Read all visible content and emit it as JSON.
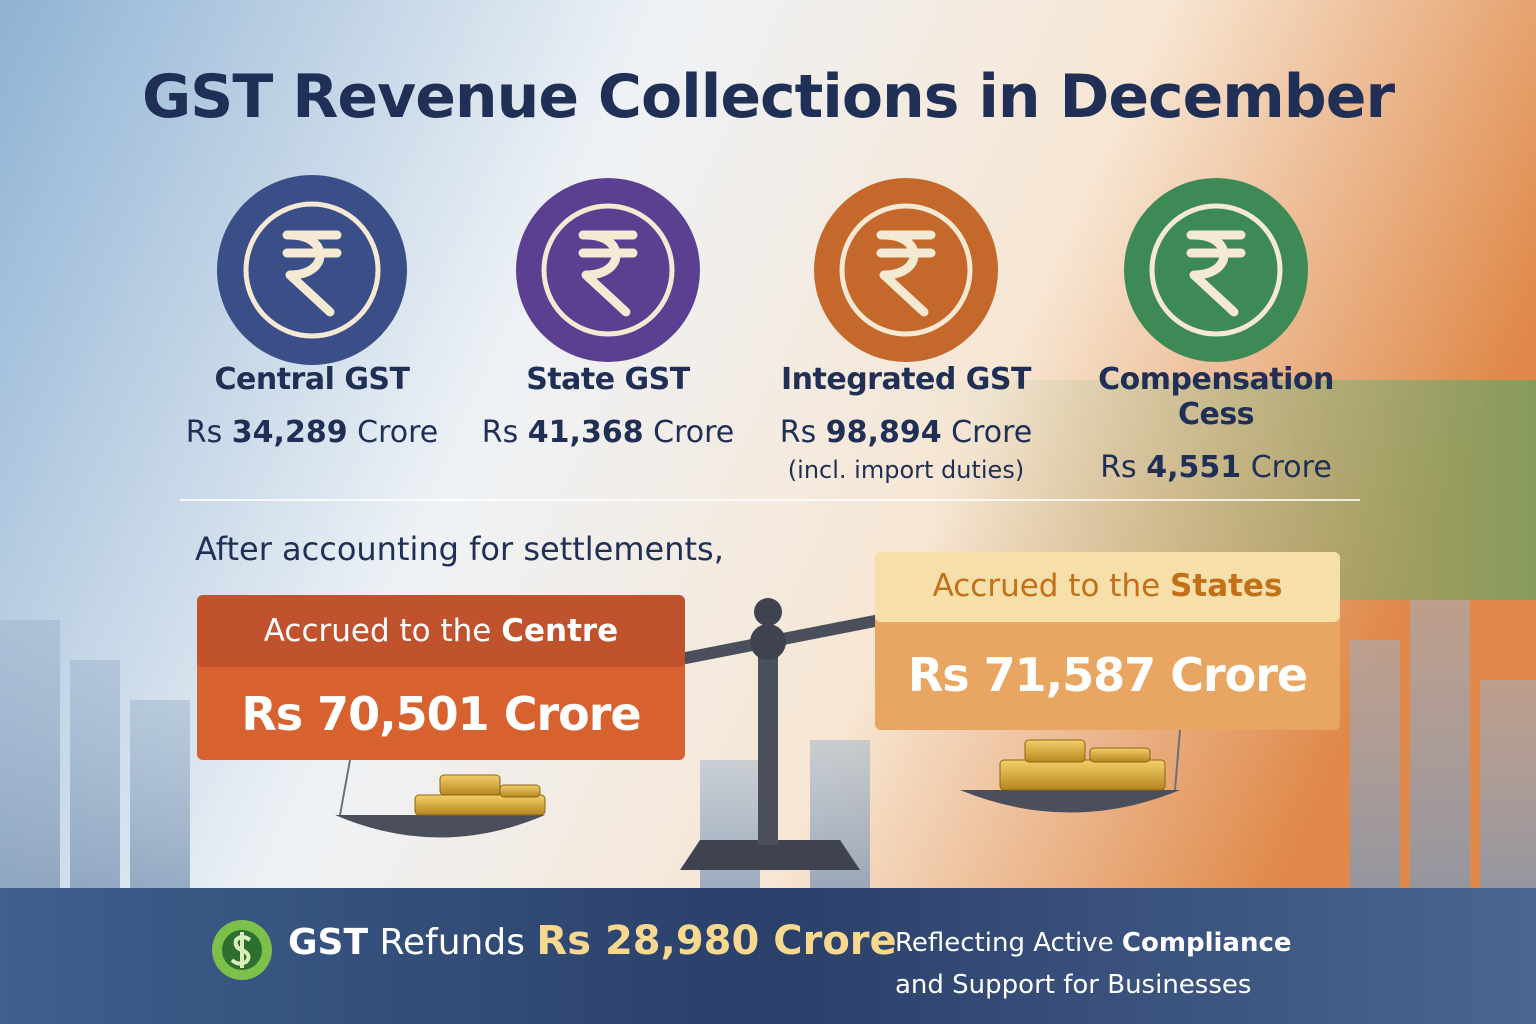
{
  "title": "GST Revenue Collections in December",
  "items": [
    {
      "label": "Central GST",
      "prefix": "Rs",
      "amount": "34,289",
      "unit": "Crore"
    },
    {
      "label": "State GST",
      "prefix": "Rs",
      "amount": "41,368",
      "unit": "Crore"
    },
    {
      "label": "Integrated GST",
      "prefix": "Rs",
      "amount": "98,894",
      "unit": "Crore",
      "note": "(incl. import duties)"
    },
    {
      "label": "Compensation Cess",
      "prefix": "Rs",
      "amount": "4,551",
      "unit": "Crore"
    }
  ],
  "intro": "After accounting for settlements,",
  "centre": {
    "label": "Accrued to the",
    "label_bold": "Centre",
    "amount": "Rs 70,501 Crore"
  },
  "states": {
    "label": "Accrued to the",
    "label_bold": "States",
    "amount": "Rs 71,587 Crore"
  },
  "footer": {
    "label_bold": "GST",
    "label": "Refunds",
    "amount": "Rs 28,980 Crore",
    "note_start": "Reflecting Active",
    "note_bold": "Compliance",
    "note_end": "and Support for Businesses"
  }
}
